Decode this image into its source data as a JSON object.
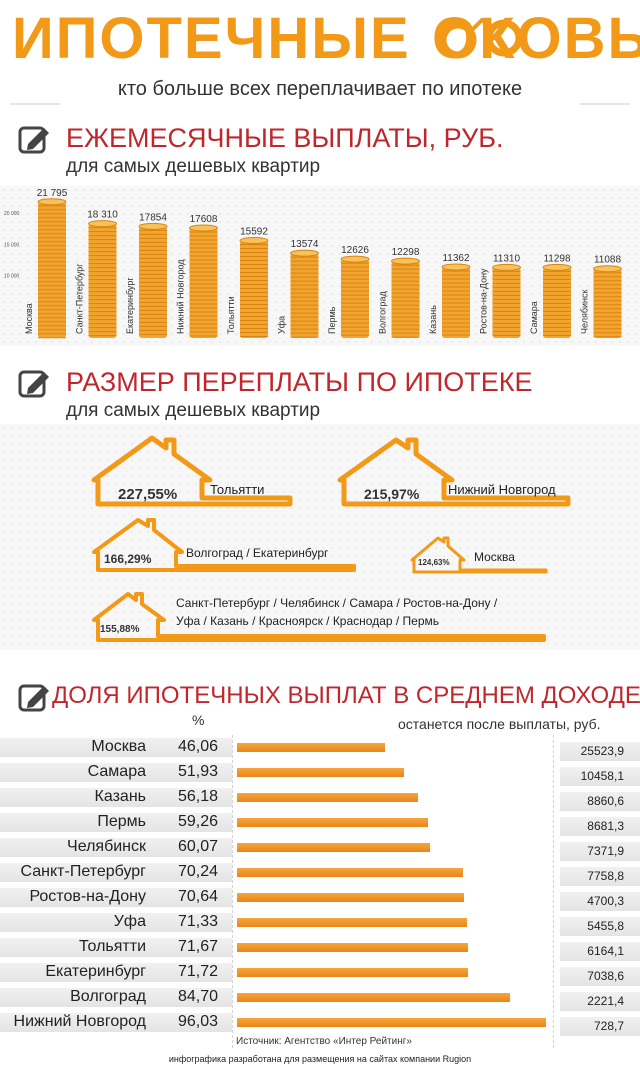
{
  "header": {
    "title_part1": "ИПОТЕЧНЫЕ",
    "title_part2": "ОКОВЫ",
    "subtitle": "кто больше всех переплачивает по ипотеке"
  },
  "section1": {
    "title": "ЕЖЕМЕСЯЧНЫЕ ВЫПЛАТЫ, РУБ.",
    "subtitle": "для самых  дешевых квартир"
  },
  "section2": {
    "title": "РАЗМЕР ПЕРЕПЛАТЫ ПО ИПОТЕКЕ",
    "subtitle": "для самых  дешевых квартир"
  },
  "section3": {
    "title": "ДОЛЯ ИПОТЕЧНЫХ ВЫПЛАТ В СРЕДНЕМ ДОХОДЕ",
    "pct_header": "%",
    "remain_header": "останется после выплаты, руб."
  },
  "houses": [
    {
      "pct": "227,55%",
      "name": "Тольятти"
    },
    {
      "pct": "215,97%",
      "name": "Нижний Новгород"
    },
    {
      "pct": "166,29%",
      "name": "Волгоград / Екатеринбург"
    },
    {
      "pct": "124,63%",
      "name": "Москва"
    },
    {
      "pct": "155,88%",
      "name_line1": "Санкт-Петербург / Челябинск  / Самара / Ростов-на-Дону /",
      "name_line2": "Уфа / Казань /  Красноярск / Краснодар / Пермь"
    }
  ],
  "source": "Источник: Агентство «Интер Рейтинг»",
  "footer": "инфографика разработана для размещения на сайтах компании Rugion",
  "colors": {
    "orange": "#f29a18",
    "red": "#c0272d",
    "coin": "#f2a52e"
  },
  "chart_data": [
    {
      "type": "bar",
      "title": "ЕЖЕМЕСЯЧНЫЕ ВЫПЛАТЫ, РУБ.",
      "ylabel": "",
      "ytick_labels": [
        "20 000",
        "15 000",
        "10 000"
      ],
      "ylim": [
        0,
        24000
      ],
      "categories": [
        "Москва",
        "Санкт-Петербург",
        "Екатеринбург",
        "Нижний Новгород",
        "Тольятти",
        "Уфа",
        "Пермь",
        "Волгоград",
        "Казань",
        "Ростов-на-Дону",
        "Самара",
        "Челябинск"
      ],
      "values": [
        21795,
        18310,
        17854,
        17608,
        15592,
        13574,
        12626,
        12298,
        11362,
        11310,
        11298,
        11088
      ],
      "value_labels": [
        "21 795",
        "18 310",
        "17854",
        "17608",
        "15592",
        "13574",
        "12626",
        "12298",
        "11362",
        "11310",
        "11298",
        "11088"
      ]
    },
    {
      "type": "bar",
      "title": "ДОЛЯ ИПОТЕЧНЫХ ВЫПЛАТ В СРЕДНЕМ ДОХОДЕ",
      "categories": [
        "Москва",
        "Самара",
        "Казань",
        "Пермь",
        "Челябинск",
        "Санкт-Петербург",
        "Ростов-на-Дону",
        "Уфа",
        "Тольятти",
        "Екатеринбург",
        "Волгоград",
        "Нижний Новгород"
      ],
      "values": [
        46.06,
        51.93,
        56.18,
        59.26,
        60.07,
        70.24,
        70.64,
        71.33,
        71.67,
        71.72,
        84.7,
        96.03
      ],
      "value_labels": [
        "46,06",
        "51,93",
        "56,18",
        "59,26",
        "60,07",
        "70,24",
        "70,64",
        "71,33",
        "71,67",
        "71,72",
        "84,70",
        "96,03"
      ],
      "remaining": [
        "25523,9",
        "10458,1",
        "8860,6",
        "8681,3",
        "7371,9",
        "7758,8",
        "4700,3",
        "5455,8",
        "6164,1",
        "7038,6",
        "2221,4",
        "728,7"
      ]
    }
  ]
}
